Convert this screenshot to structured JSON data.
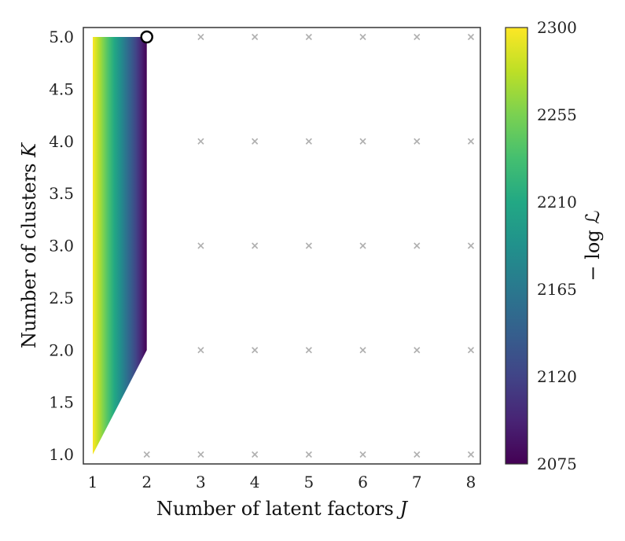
{
  "chart_data": {
    "type": "heatmap",
    "title": "",
    "xlabel": "Number of latent factors ",
    "xlabel_var": "J",
    "ylabel": "Number of clusters ",
    "ylabel_var": "K",
    "xlim": [
      1,
      8
    ],
    "ylim": [
      1.0,
      5.0
    ],
    "xticks": [
      "1",
      "2",
      "3",
      "4",
      "5",
      "6",
      "7",
      "8"
    ],
    "yticks": [
      "1.0",
      "1.5",
      "2.0",
      "2.5",
      "3.0",
      "3.5",
      "4.0",
      "4.5",
      "5.0"
    ],
    "colorbar": {
      "label": "− log ℒ",
      "min": 2075,
      "max": 2300,
      "ticks": [
        "2075",
        "2120",
        "2165",
        "2210",
        "2255",
        "2300"
      ],
      "colormap": "viridis"
    },
    "filled_region": {
      "description_values": "interpolated -log L over evaluated points",
      "points": [
        {
          "J": 1,
          "K": 1,
          "value": 2300
        },
        {
          "J": 1,
          "K": 5,
          "value": 2300
        },
        {
          "J": 2,
          "K": 2,
          "value": 2075
        },
        {
          "J": 2,
          "K": 5,
          "value": 2075
        }
      ]
    },
    "not_evaluated_markers": [
      [
        2,
        1
      ],
      [
        3,
        1
      ],
      [
        4,
        1
      ],
      [
        5,
        1
      ],
      [
        6,
        1
      ],
      [
        7,
        1
      ],
      [
        8,
        1
      ],
      [
        3,
        2
      ],
      [
        4,
        2
      ],
      [
        5,
        2
      ],
      [
        6,
        2
      ],
      [
        7,
        2
      ],
      [
        8,
        2
      ],
      [
        3,
        3
      ],
      [
        4,
        3
      ],
      [
        5,
        3
      ],
      [
        6,
        3
      ],
      [
        7,
        3
      ],
      [
        8,
        3
      ],
      [
        3,
        4
      ],
      [
        4,
        4
      ],
      [
        5,
        4
      ],
      [
        6,
        4
      ],
      [
        7,
        4
      ],
      [
        8,
        4
      ],
      [
        3,
        5
      ],
      [
        4,
        5
      ],
      [
        5,
        5
      ],
      [
        6,
        5
      ],
      [
        7,
        5
      ],
      [
        8,
        5
      ]
    ],
    "optimum": {
      "J": 2,
      "K": 5
    },
    "grid": false,
    "colors": {
      "marker": "#b0b0b0",
      "optimum_edge": "#000000",
      "axes": "#333333"
    }
  }
}
